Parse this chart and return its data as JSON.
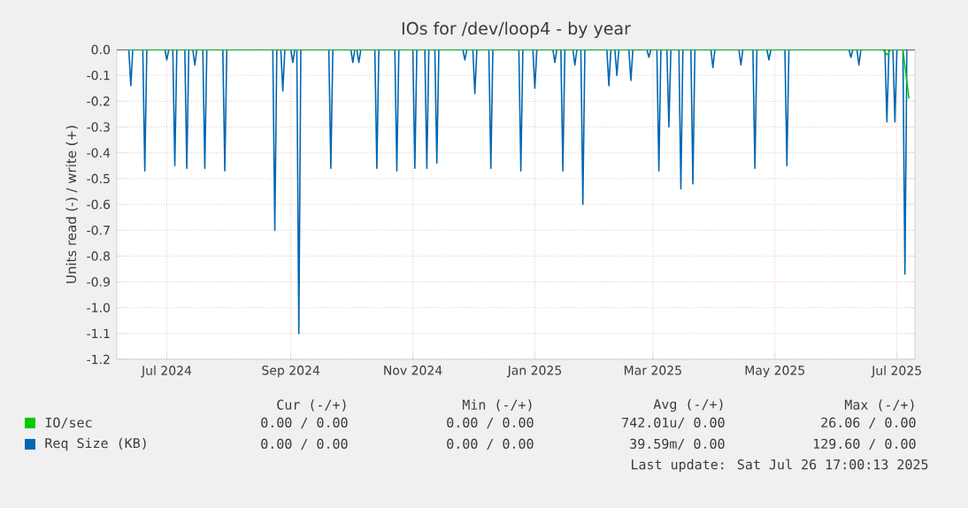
{
  "chart_data": {
    "type": "line",
    "title": "IOs for /dev/loop4 - by year",
    "ylabel": "Units read (-) / write (+)",
    "xlim": [
      "2024-06-22",
      "2025-07-26"
    ],
    "xticks": [
      {
        "value": "2024-07-17",
        "label": "Jul 2024"
      },
      {
        "value": "2024-09-17",
        "label": "Sep 2024"
      },
      {
        "value": "2024-11-17",
        "label": "Nov 2024"
      },
      {
        "value": "2025-01-17",
        "label": "Jan 2025"
      },
      {
        "value": "2025-03-17",
        "label": "Mar 2025"
      },
      {
        "value": "2025-05-17",
        "label": "May 2025"
      },
      {
        "value": "2025-07-17",
        "label": "Jul 2025"
      }
    ],
    "ylim": [
      -1.2,
      0.0
    ],
    "yticks": [
      {
        "value": 0,
        "label": "0.0"
      },
      -0.1,
      -0.2,
      -0.3,
      -0.4,
      -0.5,
      -0.6,
      -0.7,
      -0.8,
      -0.9,
      {
        "value": -1,
        "label": "-1.0"
      },
      -1.1,
      -1.2
    ],
    "grid": true,
    "legend": "bottom",
    "series": [
      {
        "name": "IO/sec",
        "color": "#00cc00",
        "x": [
          "2024-06-27",
          "2025-07-10",
          "2025-07-12",
          "2025-07-14",
          "2025-07-20",
          "2025-07-23"
        ],
        "values": [
          0,
          0,
          -0.02,
          0,
          0,
          -0.19
        ]
      },
      {
        "name": "Req Size (KB)",
        "color": "#0066b3",
        "x": [
          "2024-06-28",
          "2024-06-29",
          "2024-06-30",
          "2024-07-05",
          "2024-07-06",
          "2024-07-07",
          "2024-07-16",
          "2024-07-17",
          "2024-07-18",
          "2024-07-20",
          "2024-07-21",
          "2024-07-22",
          "2024-07-26",
          "2024-07-27",
          "2024-07-28",
          "2024-07-30",
          "2024-07-31",
          "2024-08-01",
          "2024-08-04",
          "2024-08-05",
          "2024-08-06",
          "2024-08-14",
          "2024-08-15",
          "2024-08-16",
          "2024-09-08",
          "2024-09-09",
          "2024-09-10",
          "2024-09-12",
          "2024-09-13",
          "2024-09-14",
          "2024-09-17",
          "2024-09-18",
          "2024-09-19",
          "2024-09-20",
          "2024-09-21",
          "2024-09-22",
          "2024-10-06",
          "2024-10-07",
          "2024-10-08",
          "2024-10-17",
          "2024-10-18",
          "2024-10-19",
          "2024-10-20",
          "2024-10-21",
          "2024-10-22",
          "2024-10-29",
          "2024-10-30",
          "2024-10-31",
          "2024-11-08",
          "2024-11-09",
          "2024-11-10",
          "2024-11-17",
          "2024-11-18",
          "2024-11-19",
          "2024-11-23",
          "2024-11-24",
          "2024-11-25",
          "2024-11-28",
          "2024-11-29",
          "2024-11-30",
          "2024-12-12",
          "2024-12-13",
          "2024-12-14",
          "2024-12-17",
          "2024-12-18",
          "2024-12-19",
          "2024-12-25",
          "2024-12-26",
          "2024-12-27",
          "2025-01-09",
          "2025-01-10",
          "2025-01-11",
          "2025-01-16",
          "2025-01-17",
          "2025-01-18",
          "2025-01-26",
          "2025-01-27",
          "2025-01-28",
          "2025-01-30",
          "2025-01-31",
          "2025-02-01",
          "2025-02-05",
          "2025-02-06",
          "2025-02-07",
          "2025-02-09",
          "2025-02-10",
          "2025-02-11",
          "2025-02-22",
          "2025-02-23",
          "2025-02-24",
          "2025-02-26",
          "2025-02-27",
          "2025-02-28",
          "2025-03-05",
          "2025-03-06",
          "2025-03-07",
          "2025-03-14",
          "2025-03-15",
          "2025-03-16",
          "2025-03-19",
          "2025-03-20",
          "2025-03-21",
          "2025-03-24",
          "2025-03-25",
          "2025-03-26",
          "2025-03-30",
          "2025-03-31",
          "2025-04-01",
          "2025-04-05",
          "2025-04-06",
          "2025-04-07",
          "2025-04-15",
          "2025-04-16",
          "2025-04-17",
          "2025-04-29",
          "2025-04-30",
          "2025-05-01",
          "2025-05-06",
          "2025-05-07",
          "2025-05-08",
          "2025-05-13",
          "2025-05-14",
          "2025-05-15",
          "2025-05-22",
          "2025-05-23",
          "2025-05-24",
          "2025-06-23",
          "2025-06-24",
          "2025-06-25",
          "2025-06-27",
          "2025-06-28",
          "2025-06-29",
          "2025-07-11",
          "2025-07-12",
          "2025-07-13",
          "2025-07-15",
          "2025-07-16",
          "2025-07-17",
          "2025-07-20",
          "2025-07-21",
          "2025-07-22"
        ],
        "values": [
          0,
          -0.14,
          0,
          0,
          -0.47,
          0,
          0,
          -0.04,
          0,
          0,
          -0.45,
          0,
          0,
          -0.46,
          0,
          0,
          -0.06,
          0,
          0,
          -0.46,
          0,
          0,
          -0.47,
          0,
          0,
          -0.7,
          0,
          0,
          -0.16,
          0,
          0,
          -0.05,
          0,
          0,
          -1.1,
          0,
          0,
          -0.46,
          0,
          0,
          -0.05,
          0,
          0,
          -0.05,
          0,
          0,
          -0.46,
          0,
          0,
          -0.47,
          0,
          0,
          -0.46,
          0,
          0,
          -0.46,
          0,
          0,
          -0.44,
          0,
          0,
          -0.04,
          0,
          0,
          -0.17,
          0,
          0,
          -0.46,
          0,
          0,
          -0.47,
          0,
          0,
          -0.15,
          0,
          0,
          -0.05,
          0,
          0,
          -0.47,
          0,
          0,
          -0.06,
          0,
          0,
          -0.6,
          0,
          0,
          -0.14,
          0,
          0,
          -0.1,
          0,
          0,
          -0.12,
          0,
          0,
          -0.03,
          0,
          0,
          -0.47,
          0,
          0,
          -0.3,
          0,
          0,
          -0.54,
          0,
          0,
          -0.52,
          0,
          0,
          -0.07,
          0,
          0,
          -0.06,
          0,
          0,
          -0.46,
          0,
          0,
          -0.04,
          0,
          0,
          -0.45,
          0,
          0,
          -0.03,
          0,
          0,
          -0.06,
          0,
          0,
          -0.28,
          0,
          0,
          -0.28,
          0,
          0,
          -0.87,
          0
        ]
      }
    ],
    "annotations": [
      "Cur (-/+)",
      "Min (-/+)",
      "Avg (-/+)",
      "Max (-/+)",
      "0.00 / 0.00",
      "0.00 / 0.00",
      "742.01u/ 0.00",
      "26.06 / 0.00",
      "0.00 / 0.00",
      "0.00 / 0.00",
      "39.59m/ 0.00",
      "129.60 / 0.00",
      "Last update: Sat Jul 26 17:00:13 2025"
    ]
  }
}
